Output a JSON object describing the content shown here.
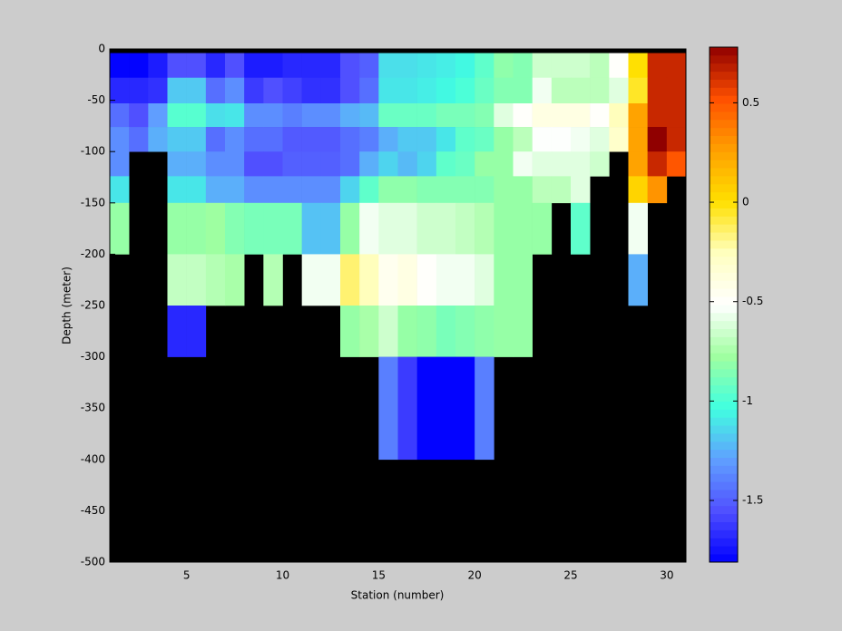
{
  "chart_data": {
    "type": "heatmap",
    "xlabel": "Station (number)",
    "ylabel": "Depth (meter)",
    "xlim": [
      1,
      31
    ],
    "ylim": [
      -500,
      0
    ],
    "xticks": [
      5,
      10,
      15,
      20,
      25,
      30
    ],
    "yticks": [
      0,
      -50,
      -100,
      -150,
      -200,
      -250,
      -300,
      -350,
      -400,
      -450,
      -500
    ],
    "x_bins": [
      1,
      2,
      3,
      4,
      5,
      6,
      7,
      8,
      9,
      10,
      11,
      12,
      13,
      14,
      15,
      16,
      17,
      18,
      19,
      20,
      21,
      22,
      23,
      24,
      25,
      26,
      27,
      28,
      29,
      30,
      31
    ],
    "y_bins": [
      -4,
      -28,
      -53,
      -76,
      -100,
      -124,
      -150,
      -200,
      -250,
      -300,
      -400
    ],
    "z": [
      [
        -1.8,
        -1.8,
        -1.72,
        -1.55,
        -1.55,
        -1.68,
        -1.55,
        -1.72,
        -1.72,
        -1.68,
        -1.68,
        -1.68,
        -1.55,
        -1.5,
        -1.12,
        -1.12,
        -1.1,
        -1.08,
        -1.05,
        -0.95,
        -0.82,
        -0.85,
        -0.65,
        -0.65,
        -0.65,
        -0.7,
        -0.5,
        0,
        0.65,
        0.65
      ],
      [
        -1.68,
        -1.68,
        -1.65,
        -1.18,
        -1.18,
        -1.45,
        -1.35,
        -1.62,
        -1.55,
        -1.6,
        -1.65,
        -1.65,
        -1.55,
        -1.45,
        -1.1,
        -1.1,
        -1.08,
        -1.05,
        -1,
        -0.92,
        -0.85,
        -0.85,
        -0.55,
        -0.7,
        -0.7,
        -0.7,
        -0.6,
        -0.05,
        0.65,
        0.65
      ],
      [
        -1.45,
        -1.55,
        -1.3,
        -0.97,
        -0.97,
        -1.12,
        -1.1,
        -1.35,
        -1.35,
        -1.4,
        -1.35,
        -1.35,
        -1.25,
        -1.22,
        -0.92,
        -0.92,
        -0.92,
        -0.88,
        -0.88,
        -0.85,
        -0.6,
        -0.5,
        -0.4,
        -0.4,
        -0.4,
        -0.5,
        -0.25,
        0.25,
        0.65,
        0.65
      ],
      [
        -1.35,
        -1.45,
        -1.25,
        -1.18,
        -1.18,
        -1.45,
        -1.35,
        -1.45,
        -1.45,
        -1.52,
        -1.52,
        -1.52,
        -1.45,
        -1.4,
        -1.25,
        -1.18,
        -1.18,
        -1.1,
        -0.95,
        -0.92,
        -0.8,
        -0.7,
        -0.52,
        -0.52,
        -0.55,
        -0.6,
        -0.3,
        0.25,
        0.78,
        0.65
      ],
      [
        -1.35,
        null,
        null,
        -1.25,
        -1.25,
        -1.35,
        -1.35,
        -1.55,
        -1.55,
        -1.5,
        -1.5,
        -1.5,
        -1.45,
        -1.25,
        -1.15,
        -1.22,
        -1.15,
        -0.95,
        -0.92,
        -0.8,
        -0.8,
        -0.55,
        -0.6,
        -0.6,
        -0.6,
        -0.65,
        null,
        0.25,
        0.65,
        0.5
      ],
      [
        -1.1,
        null,
        null,
        -1.1,
        -1.1,
        -1.25,
        -1.25,
        -1.35,
        -1.35,
        -1.35,
        -1.35,
        -1.35,
        -1.15,
        -0.95,
        -0.82,
        -0.82,
        -0.85,
        -0.85,
        -0.85,
        -0.85,
        -0.8,
        -0.8,
        -0.7,
        -0.7,
        -0.6,
        null,
        null,
        0.05,
        0.3,
        null
      ],
      [
        -0.8,
        null,
        null,
        -0.8,
        -0.8,
        -0.78,
        -0.85,
        -0.88,
        -0.88,
        -0.88,
        -1.2,
        -1.2,
        -0.8,
        -0.55,
        -0.6,
        -0.6,
        -0.65,
        -0.65,
        -0.68,
        -0.72,
        -0.8,
        -0.8,
        -0.8,
        null,
        -0.95,
        null,
        null,
        -0.55,
        null,
        null
      ],
      [
        null,
        null,
        null,
        -0.68,
        -0.68,
        -0.72,
        -0.75,
        null,
        -0.72,
        null,
        -0.55,
        -0.55,
        -0.15,
        -0.25,
        -0.45,
        -0.4,
        -0.5,
        -0.55,
        -0.55,
        -0.6,
        -0.8,
        -0.8,
        null,
        null,
        null,
        null,
        null,
        -1.25,
        null,
        null
      ],
      [
        null,
        null,
        null,
        -1.68,
        -1.68,
        null,
        null,
        null,
        null,
        null,
        null,
        null,
        -0.8,
        -0.75,
        -0.65,
        -0.8,
        -0.82,
        -0.88,
        -0.85,
        -0.82,
        -0.8,
        -0.8,
        null,
        null,
        null,
        null,
        null,
        null,
        null,
        null
      ],
      [
        null,
        null,
        null,
        null,
        null,
        null,
        null,
        null,
        null,
        null,
        null,
        null,
        null,
        null,
        -1.4,
        -1.62,
        -1.8,
        -1.8,
        -1.8,
        -1.4,
        null,
        null,
        null,
        null,
        null,
        null,
        null,
        null,
        null,
        null
      ]
    ],
    "clim": [
      -1.81,
      0.78
    ],
    "cticks": [
      0.5,
      0,
      -0.5,
      -1,
      -1.5
    ],
    "colormap": [
      "#0000ff",
      "#5050ff",
      "#60a0ff",
      "#40ffe0",
      "#a0ffa0",
      "#ffffff",
      "#ffffc0",
      "#ffe000",
      "#ffa000",
      "#ff5000",
      "#900000"
    ],
    "background": "#000000"
  }
}
